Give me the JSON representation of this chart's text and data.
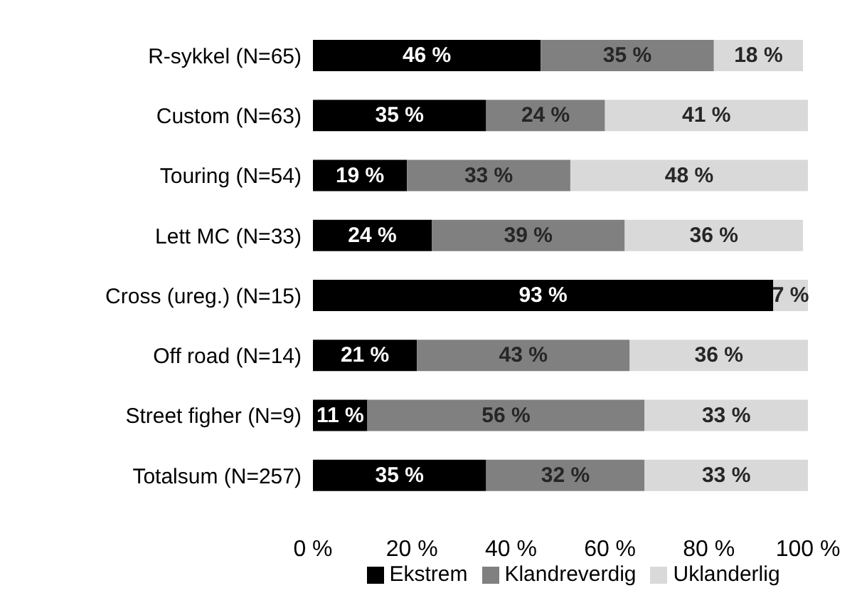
{
  "chart_data": {
    "type": "bar",
    "orientation": "horizontal",
    "stacked": true,
    "categories": [
      "R-sykkel (N=65)",
      "Custom (N=63)",
      "Touring (N=54)",
      "Lett MC (N=33)",
      "Cross (ureg.) (N=15)",
      "Off road (N=14)",
      "Street figher (N=9)",
      "Totalsum (N=257)"
    ],
    "series": [
      {
        "name": "Ekstrem",
        "color": "#000000",
        "values": [
          46,
          35,
          19,
          24,
          93,
          21,
          11,
          35
        ],
        "value_labels": [
          "46 %",
          "35 %",
          "19 %",
          "24 %",
          "93 %",
          "21 %",
          "11 %",
          "35 %"
        ]
      },
      {
        "name": "Klandreverdig",
        "color": "#808080",
        "values": [
          35,
          24,
          33,
          39,
          null,
          43,
          56,
          32
        ],
        "value_labels": [
          "35 %",
          "24 %",
          "33 %",
          "39 %",
          null,
          "43 %",
          "56 %",
          "32 %"
        ]
      },
      {
        "name": "Uklanderlig",
        "color": "#d9d9d9",
        "values": [
          18,
          41,
          48,
          36,
          7,
          36,
          33,
          33
        ],
        "value_labels": [
          "18 %",
          "41 %",
          "48 %",
          "36 %",
          "7 %",
          "36 %",
          "33 %",
          "33 %"
        ]
      }
    ],
    "xlim": [
      0,
      100
    ],
    "xticks": [
      {
        "value": 0,
        "label": "0 %"
      },
      {
        "value": 20,
        "label": "20 %"
      },
      {
        "value": 40,
        "label": "40 %"
      },
      {
        "value": 60,
        "label": "60 %"
      },
      {
        "value": 80,
        "label": "80 %"
      },
      {
        "value": 100,
        "label": "100 %"
      }
    ],
    "grid": false,
    "legend": "bottom"
  }
}
